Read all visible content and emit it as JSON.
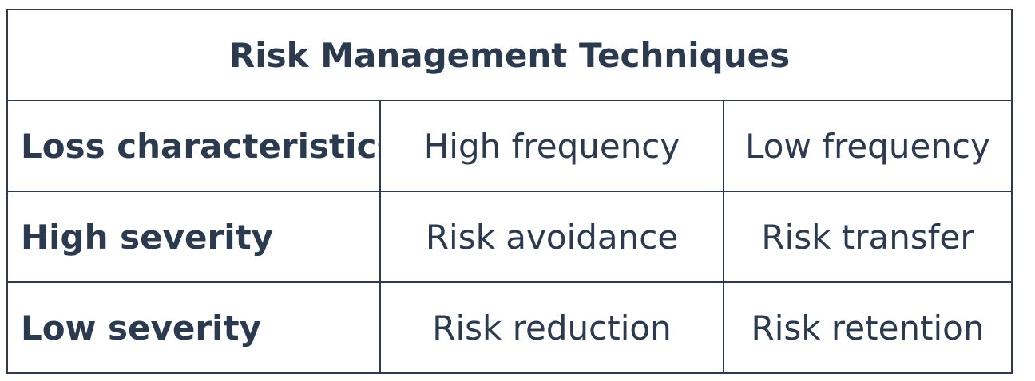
{
  "table": {
    "title": "Risk Management Techniques",
    "header": {
      "label": "Loss characteristics",
      "columns": [
        "High frequency",
        "Low frequency"
      ]
    },
    "rows": [
      {
        "label": "High severity",
        "cells": [
          "Risk avoidance",
          "Risk transfer"
        ]
      },
      {
        "label": "Low severity",
        "cells": [
          "Risk reduction",
          "Risk retention"
        ]
      }
    ]
  },
  "colors": {
    "text": "#2b3a4e",
    "border": "#2e3b4e",
    "background": "#ffffff"
  }
}
